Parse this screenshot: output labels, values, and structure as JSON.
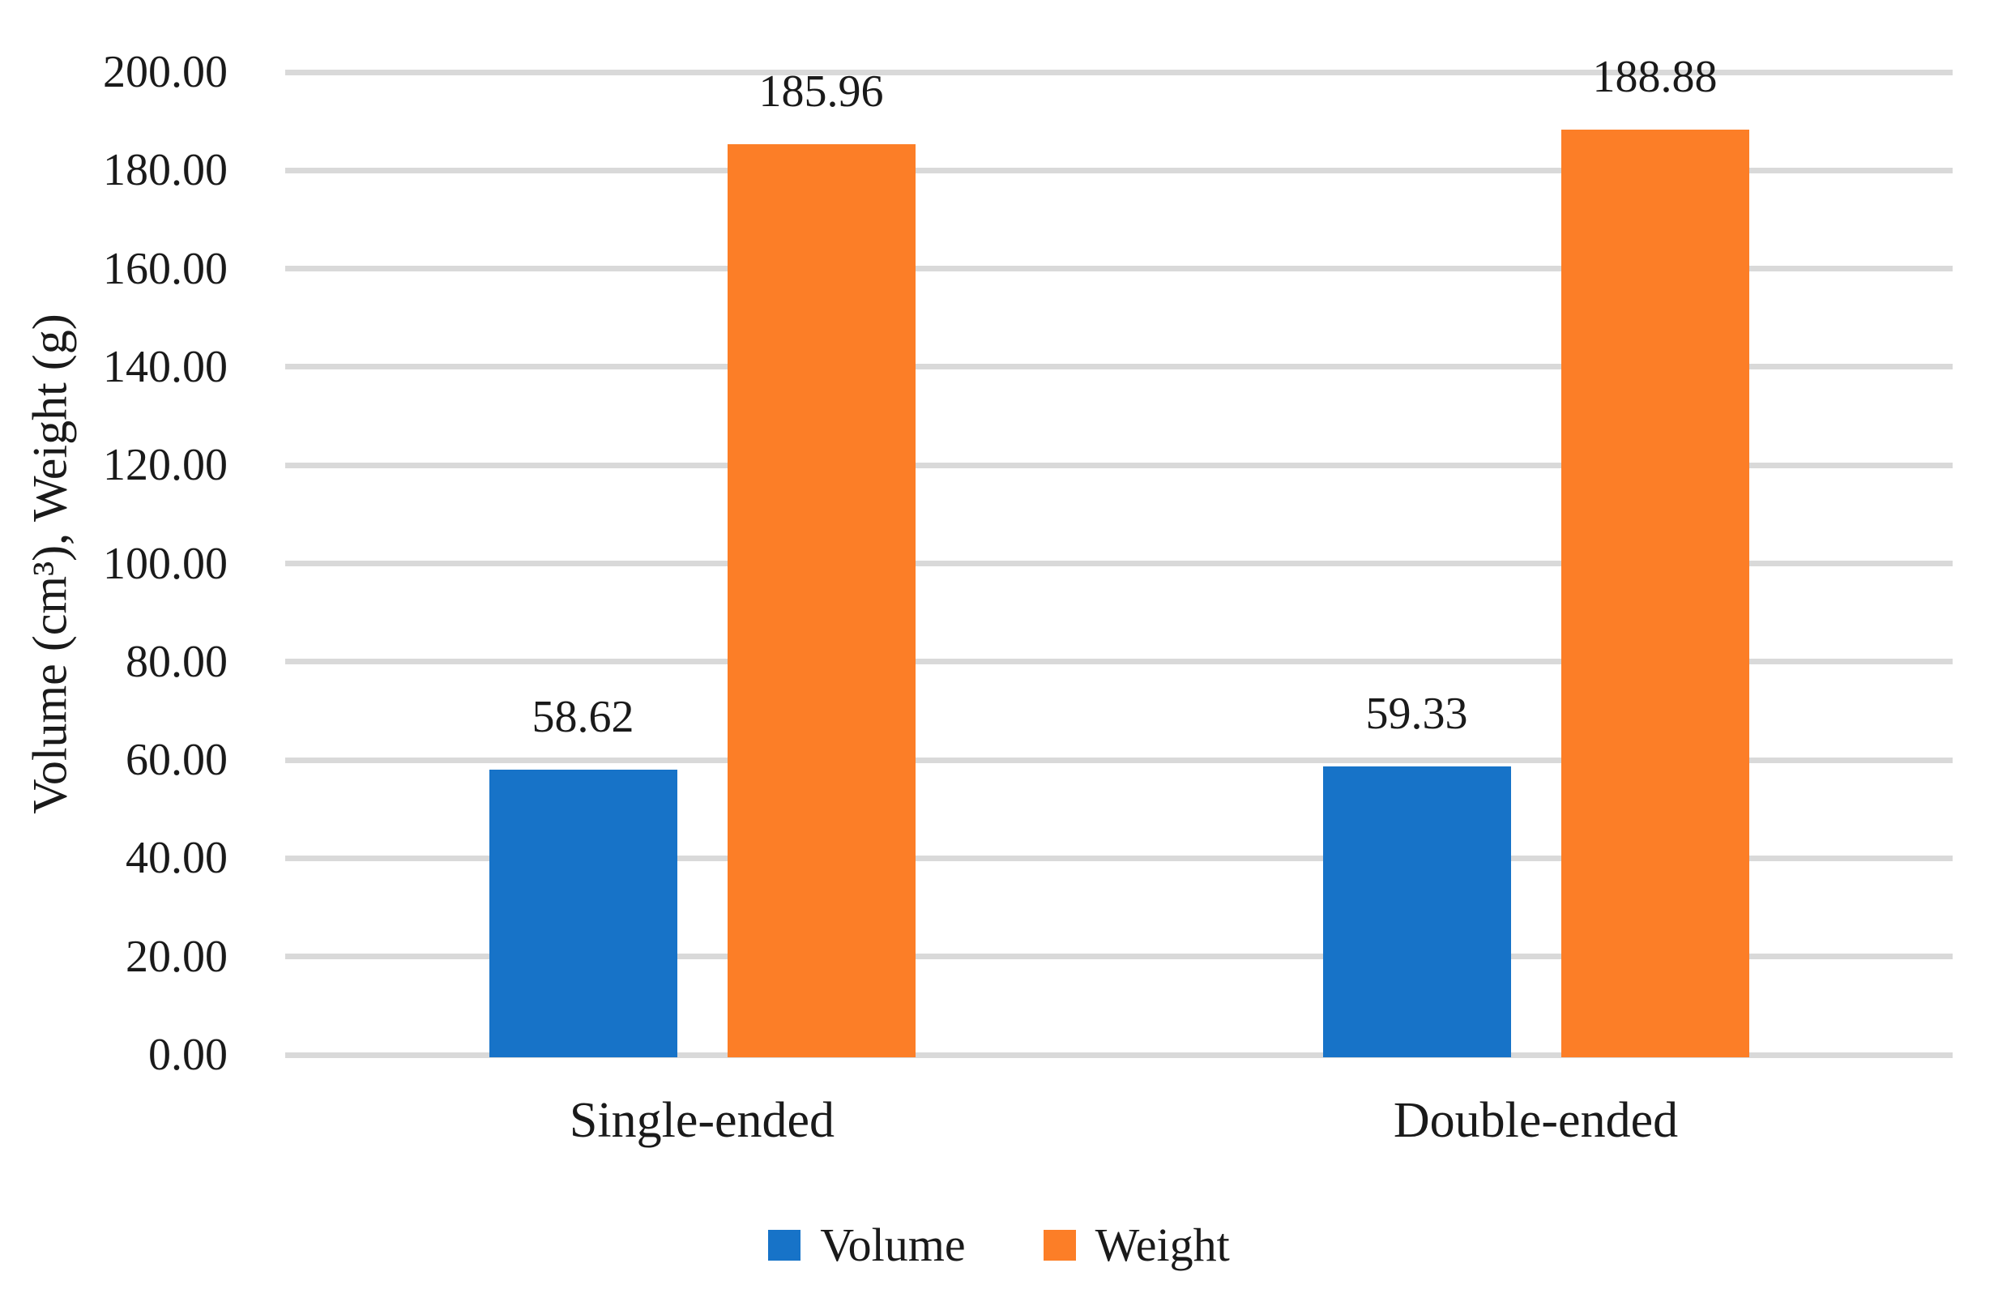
{
  "chart_data": {
    "type": "bar",
    "title": "",
    "ylabel": "Volume (cm³), Weight (g)",
    "xlabel": "",
    "categories": [
      "Single-ended",
      "Double-ended"
    ],
    "series": [
      {
        "name": "Volume",
        "color": "#1773c8",
        "values": [
          58.62,
          59.33
        ]
      },
      {
        "name": "Weight",
        "color": "#fc7e27",
        "values": [
          185.96,
          188.88
        ]
      }
    ],
    "data_labels": [
      [
        "58.62",
        "185.96"
      ],
      [
        "59.33",
        "188.88"
      ]
    ],
    "ylim": [
      0,
      200
    ],
    "ytick_step": 20,
    "yticks": [
      "0.00",
      "20.00",
      "40.00",
      "60.00",
      "80.00",
      "100.00",
      "120.00",
      "140.00",
      "160.00",
      "180.00",
      "200.00"
    ],
    "grid": true,
    "gridline_color": "#d9d9d9",
    "text_color": "#1a1a1a",
    "background_color": "#ffffff",
    "legend_position": "bottom",
    "legend": [
      {
        "label": "Volume",
        "color": "#1773c8"
      },
      {
        "label": "Weight",
        "color": "#fc7e27"
      }
    ]
  }
}
